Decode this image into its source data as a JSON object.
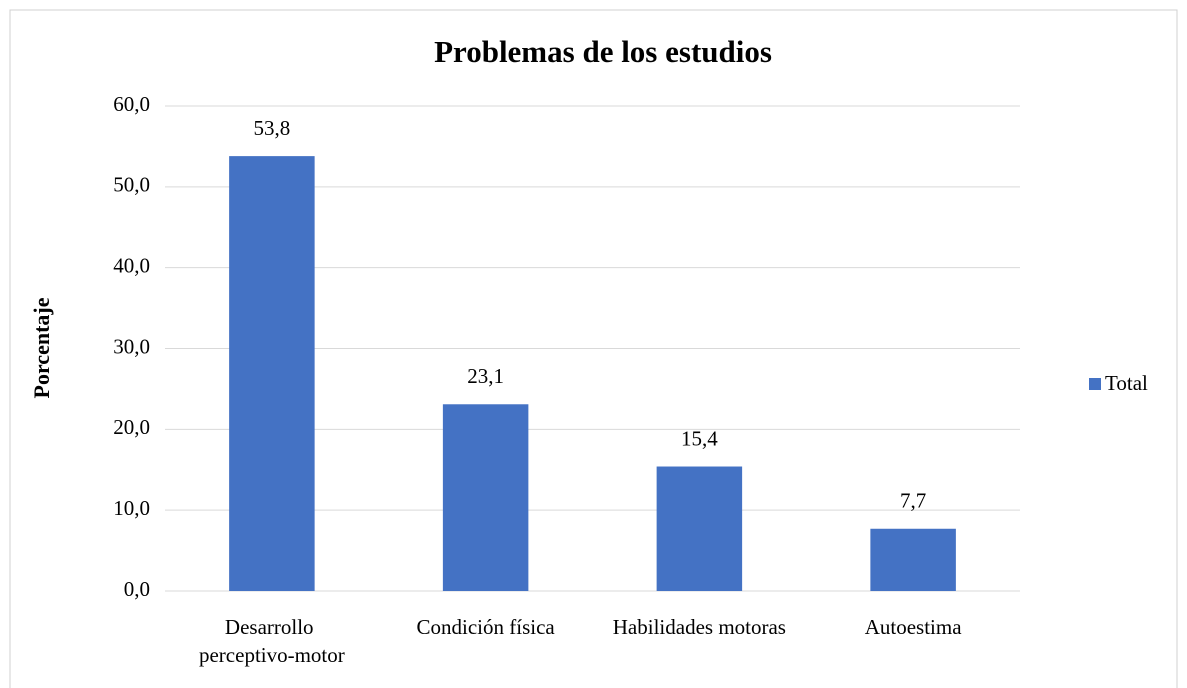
{
  "chart_data": {
    "type": "bar",
    "title": "Problemas de los estudios",
    "y_label": "Porcentaje",
    "categories": [
      "Desarrollo perceptivo-motor",
      "Condición física",
      "Habilidades motoras",
      "Autoestima"
    ],
    "series": [
      {
        "name": "Total",
        "color": "#4472c4",
        "values": [
          53.8,
          23.1,
          15.4,
          7.7
        ],
        "value_labels": [
          "53,8",
          "23,1",
          "15,4",
          "7,7"
        ]
      }
    ],
    "ylim": [
      0,
      60
    ],
    "yticks": [
      {
        "value": 0,
        "label": "0,0"
      },
      {
        "value": 10,
        "label": "10,0"
      },
      {
        "value": 20,
        "label": "20,0"
      },
      {
        "value": 30,
        "label": "30,0"
      },
      {
        "value": 40,
        "label": "40,0"
      },
      {
        "value": 50,
        "label": "50,0"
      },
      {
        "value": 60,
        "label": "60,0"
      }
    ],
    "grid": true,
    "legend": "right"
  }
}
